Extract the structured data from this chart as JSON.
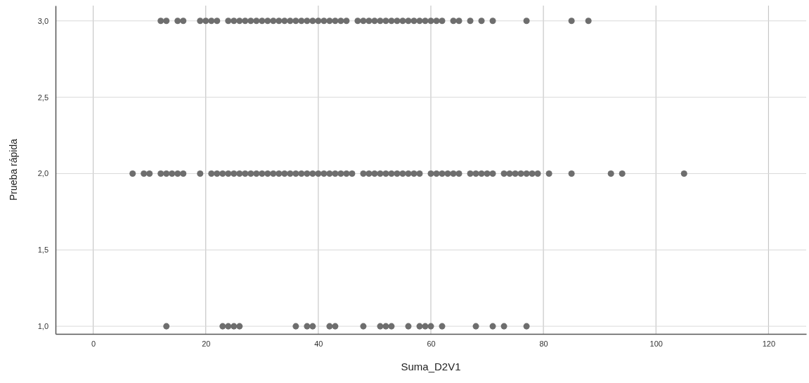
{
  "chart_data": {
    "type": "scatter",
    "xlabel": "Suma_D2V1",
    "ylabel": "Prueba rápida",
    "xlim": [
      -6.7,
      126.7
    ],
    "ylim": [
      0.95,
      3.1
    ],
    "xticks": [
      0,
      20,
      40,
      60,
      80,
      100,
      120
    ],
    "yticks": [
      {
        "value": 1,
        "label": "1,0"
      },
      {
        "value": 1.5,
        "label": "1,5"
      },
      {
        "value": 2,
        "label": "2,0"
      },
      {
        "value": 2.5,
        "label": "2,5"
      },
      {
        "value": 3,
        "label": "3,0"
      }
    ],
    "grid": true,
    "marker": "circle",
    "series": [
      {
        "color": "#6e6e6e",
        "x": [
          12,
          13,
          15,
          16,
          19,
          20,
          21,
          22,
          24,
          25,
          26,
          27,
          28,
          29,
          30,
          31,
          32,
          33,
          34,
          35,
          36,
          37,
          38,
          39,
          40,
          41,
          42,
          43,
          44,
          45,
          47,
          48,
          49,
          50,
          51,
          52,
          53,
          54,
          55,
          56,
          57,
          58,
          59,
          60,
          61,
          62,
          64,
          65,
          67,
          69,
          71,
          77,
          85,
          88,
          7,
          9,
          10,
          12,
          13,
          14,
          15,
          16,
          19,
          21,
          22,
          23,
          24,
          25,
          26,
          27,
          28,
          29,
          30,
          31,
          32,
          33,
          34,
          35,
          36,
          37,
          38,
          39,
          40,
          41,
          42,
          43,
          44,
          45,
          46,
          48,
          49,
          50,
          51,
          52,
          53,
          54,
          55,
          56,
          57,
          58,
          60,
          61,
          62,
          63,
          64,
          65,
          67,
          68,
          69,
          70,
          71,
          73,
          74,
          75,
          76,
          77,
          78,
          79,
          81,
          85,
          92,
          94,
          105,
          13,
          23,
          24,
          25,
          26,
          36,
          38,
          39,
          42,
          43,
          48,
          51,
          52,
          53,
          56,
          58,
          59,
          60,
          62,
          68,
          71,
          73,
          77
        ],
        "values": [
          3,
          3,
          3,
          3,
          3,
          3,
          3,
          3,
          3,
          3,
          3,
          3,
          3,
          3,
          3,
          3,
          3,
          3,
          3,
          3,
          3,
          3,
          3,
          3,
          3,
          3,
          3,
          3,
          3,
          3,
          3,
          3,
          3,
          3,
          3,
          3,
          3,
          3,
          3,
          3,
          3,
          3,
          3,
          3,
          3,
          3,
          3,
          3,
          3,
          3,
          3,
          3,
          3,
          3,
          2,
          2,
          2,
          2,
          2,
          2,
          2,
          2,
          2,
          2,
          2,
          2,
          2,
          2,
          2,
          2,
          2,
          2,
          2,
          2,
          2,
          2,
          2,
          2,
          2,
          2,
          2,
          2,
          2,
          2,
          2,
          2,
          2,
          2,
          2,
          2,
          2,
          2,
          2,
          2,
          2,
          2,
          2,
          2,
          2,
          2,
          2,
          2,
          2,
          2,
          2,
          2,
          2,
          2,
          2,
          2,
          2,
          2,
          2,
          2,
          2,
          2,
          2,
          2,
          2,
          2,
          2,
          2,
          2,
          1,
          1,
          1,
          1,
          1,
          1,
          1,
          1,
          1,
          1,
          1,
          1,
          1,
          1,
          1,
          1,
          1,
          1,
          1,
          1,
          1,
          1,
          1
        ]
      }
    ]
  }
}
